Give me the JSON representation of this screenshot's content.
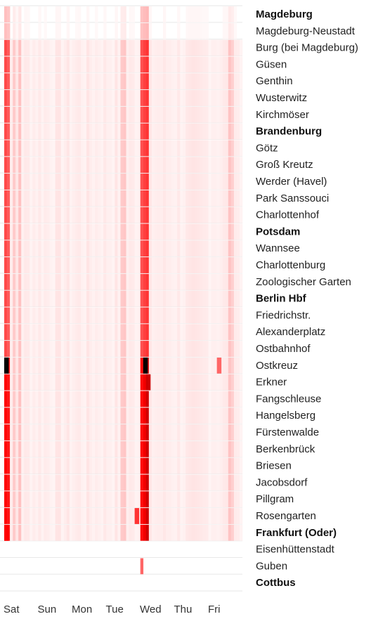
{
  "chart_data": {
    "type": "heatmap",
    "title": "",
    "xlabel": "",
    "ylabel": "",
    "x_categories": [
      "Sat",
      "Sun",
      "Mon",
      "Tue",
      "Wed",
      "Thu",
      "Fri"
    ],
    "y_categories": [
      {
        "name": "Magdeburg",
        "major": true
      },
      {
        "name": "Magdeburg-Neustadt",
        "major": false
      },
      {
        "name": "Burg (bei Magdeburg)",
        "major": false
      },
      {
        "name": "Güsen",
        "major": false
      },
      {
        "name": "Genthin",
        "major": false
      },
      {
        "name": "Wusterwitz",
        "major": false
      },
      {
        "name": "Kirchmöser",
        "major": false
      },
      {
        "name": "Brandenburg",
        "major": true
      },
      {
        "name": "Götz",
        "major": false
      },
      {
        "name": "Groß Kreutz",
        "major": false
      },
      {
        "name": "Werder (Havel)",
        "major": false
      },
      {
        "name": "Park Sanssouci",
        "major": false
      },
      {
        "name": "Charlottenhof",
        "major": false
      },
      {
        "name": "Potsdam",
        "major": true
      },
      {
        "name": "Wannsee",
        "major": false
      },
      {
        "name": "Charlottenburg",
        "major": false
      },
      {
        "name": "Zoologischer Garten",
        "major": false
      },
      {
        "name": "Berlin Hbf",
        "major": true
      },
      {
        "name": "Friedrichstr.",
        "major": false
      },
      {
        "name": "Alexanderplatz",
        "major": false
      },
      {
        "name": "Ostbahnhof",
        "major": false
      },
      {
        "name": "Ostkreuz",
        "major": false
      },
      {
        "name": "Erkner",
        "major": false
      },
      {
        "name": "Fangschleuse",
        "major": false
      },
      {
        "name": "Hangelsberg",
        "major": false
      },
      {
        "name": "Fürstenwalde",
        "major": false
      },
      {
        "name": "Berkenbrück",
        "major": false
      },
      {
        "name": "Briesen",
        "major": false
      },
      {
        "name": "Jacobsdorf",
        "major": false
      },
      {
        "name": "Pillgram",
        "major": false
      },
      {
        "name": "Rosengarten",
        "major": false
      },
      {
        "name": "Frankfurt (Oder)",
        "major": true
      },
      {
        "name": "Eisenhüttenstadt",
        "major": false
      },
      {
        "name": "Guben",
        "major": false
      },
      {
        "name": "Cottbus",
        "major": true
      }
    ],
    "color_scale": {
      "low": "#ffffff",
      "mid": "#ff0000",
      "high": "#000000"
    },
    "hotspots": [
      {
        "day": "Sat",
        "time_fraction": 0.04,
        "station": "Ostkreuz",
        "value": 1.0
      },
      {
        "day": "Wed",
        "time_fraction": 0.12,
        "station": "Ostkreuz",
        "value": 1.0
      },
      {
        "day": "Sat",
        "time_fraction": 0.08,
        "station": "Frankfurt (Oder)",
        "value": 0.75
      },
      {
        "day": "Wed",
        "time_fraction": 0.2,
        "station": "Erkner",
        "value": 0.8
      },
      {
        "day": "Tue",
        "time_fraction": 0.85,
        "station": "Rosengarten",
        "value": 0.6
      },
      {
        "day": "Fri",
        "time_fraction": 0.3,
        "station": "Ostkreuz",
        "value": 0.45
      }
    ]
  }
}
